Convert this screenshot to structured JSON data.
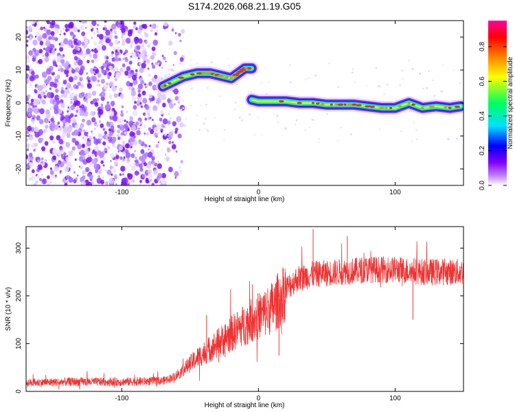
{
  "figure_title": "S174.2026.068.21.19.G05",
  "chart_data": [
    {
      "type": "heatmap",
      "title": "S174.2026.068.21.19.G05",
      "xlabel": "Height of straight line (km)",
      "ylabel": "Frequency (Hz)",
      "xlim": [
        -170,
        150
      ],
      "ylim": [
        -25,
        25
      ],
      "x_ticks": [
        -100,
        0,
        100
      ],
      "y_ticks": [
        -20,
        -10,
        0,
        10,
        20
      ],
      "colorbar": {
        "label": "Normalized spectral amplitude",
        "range": [
          0.0,
          0.95
        ],
        "ticks": [
          0.0,
          0.2,
          0.4,
          0.6,
          0.8
        ],
        "colors": [
          "#ffffff",
          "#c080ff",
          "#8000ff",
          "#0000ff",
          "#00e0ff",
          "#00ff60",
          "#ffff00",
          "#ff8000",
          "#ff0000",
          "#ff00a0"
        ]
      },
      "noise_region": {
        "x_range": [
          -170,
          -60
        ],
        "y_range": [
          -25,
          25
        ]
      },
      "signal_track": [
        {
          "x": -70,
          "y": 5
        },
        {
          "x": -65,
          "y": 6
        },
        {
          "x": -60,
          "y": 7
        },
        {
          "x": -55,
          "y": 8
        },
        {
          "x": -50,
          "y": 8.5
        },
        {
          "x": -45,
          "y": 9
        },
        {
          "x": -40,
          "y": 9
        },
        {
          "x": -35,
          "y": 9
        },
        {
          "x": -30,
          "y": 8.5
        },
        {
          "x": -25,
          "y": 8
        },
        {
          "x": -20,
          "y": 7.5
        },
        {
          "x": -15,
          "y": 9
        },
        {
          "x": -10,
          "y": 10.5
        },
        {
          "x": -5,
          "y": 10.5
        },
        {
          "x": -5,
          "y": 1
        },
        {
          "x": 0,
          "y": 0.5
        },
        {
          "x": 10,
          "y": 0.5
        },
        {
          "x": 20,
          "y": 0.5
        },
        {
          "x": 30,
          "y": 0
        },
        {
          "x": 40,
          "y": 0
        },
        {
          "x": 50,
          "y": -0.5
        },
        {
          "x": 60,
          "y": -0.5
        },
        {
          "x": 70,
          "y": -0.5
        },
        {
          "x": 80,
          "y": -1
        },
        {
          "x": 90,
          "y": -1.5
        },
        {
          "x": 100,
          "y": -1.5
        },
        {
          "x": 110,
          "y": 0
        },
        {
          "x": 120,
          "y": -1.5
        },
        {
          "x": 130,
          "y": -1
        },
        {
          "x": 140,
          "y": -1.5
        },
        {
          "x": 148,
          "y": -1
        }
      ]
    },
    {
      "type": "line",
      "xlabel": "Height of straight line (km)",
      "ylabel": "SNR (10 * v/v)",
      "xlim": [
        -170,
        150
      ],
      "ylim": [
        0,
        345
      ],
      "x_ticks": [
        -100,
        0,
        100
      ],
      "y_ticks": [
        0,
        100,
        200,
        300
      ],
      "color": "#ee3333",
      "series": [
        {
          "name": "SNR",
          "trend": [
            {
              "x": -170,
              "y": 18
            },
            {
              "x": -140,
              "y": 20
            },
            {
              "x": -100,
              "y": 20
            },
            {
              "x": -70,
              "y": 22
            },
            {
              "x": -62,
              "y": 30
            },
            {
              "x": -55,
              "y": 45
            },
            {
              "x": -45,
              "y": 70
            },
            {
              "x": -35,
              "y": 90
            },
            {
              "x": -25,
              "y": 110
            },
            {
              "x": -15,
              "y": 130
            },
            {
              "x": -5,
              "y": 150
            },
            {
              "x": 5,
              "y": 165
            },
            {
              "x": 12,
              "y": 180
            },
            {
              "x": 20,
              "y": 215
            },
            {
              "x": 28,
              "y": 235
            },
            {
              "x": 40,
              "y": 245
            },
            {
              "x": 60,
              "y": 250
            },
            {
              "x": 80,
              "y": 255
            },
            {
              "x": 100,
              "y": 255
            },
            {
              "x": 120,
              "y": 250
            },
            {
              "x": 150,
              "y": 250
            }
          ],
          "spikes": [
            {
              "x": -38,
              "y": 160
            },
            {
              "x": 15,
              "y": 75
            },
            {
              "x": 40,
              "y": 340
            },
            {
              "x": 65,
              "y": 325
            },
            {
              "x": 113,
              "y": 150
            }
          ]
        }
      ]
    }
  ]
}
